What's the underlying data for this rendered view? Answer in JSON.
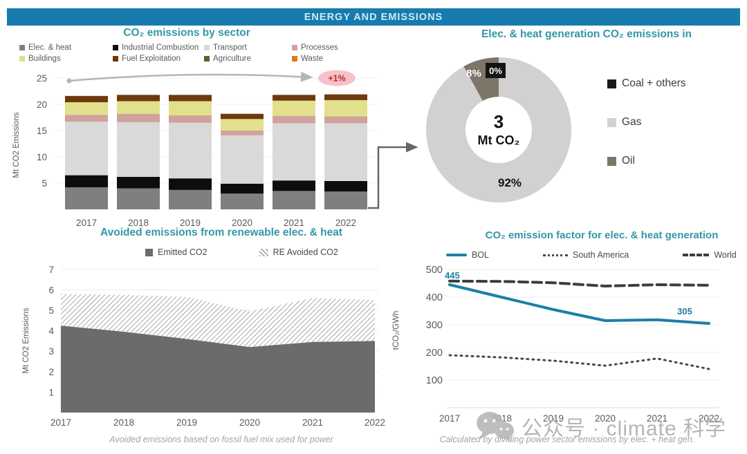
{
  "banner": {
    "title": "ENERGY AND EMISSIONS"
  },
  "watermark": {
    "icon": "wechat-icon",
    "text": "公众号 · climate 科学"
  },
  "chart_data": [
    {
      "id": "emissions-by-sector",
      "type": "bar",
      "stacked": true,
      "title": "CO₂ emissions by sector",
      "ylabel": "Mt CO2 Emissions",
      "ylim": [
        0,
        25
      ],
      "y_ticks": [
        5,
        10,
        15,
        20,
        25
      ],
      "categories": [
        "2017",
        "2018",
        "2019",
        "2020",
        "2021",
        "2022"
      ],
      "series": [
        {
          "name": "Elec. & heat",
          "color": "#7f7f7f",
          "values": [
            4.2,
            4.0,
            3.7,
            3.0,
            3.5,
            3.4
          ]
        },
        {
          "name": "Industrial Combustion",
          "color": "#0d0d0d",
          "values": [
            2.3,
            2.2,
            2.2,
            1.9,
            2.0,
            2.0
          ]
        },
        {
          "name": "Transport",
          "color": "#d9d9d9",
          "values": [
            10.2,
            10.4,
            10.6,
            9.2,
            10.9,
            11.0
          ]
        },
        {
          "name": "Processes",
          "color": "#cfa29c",
          "values": [
            1.3,
            1.6,
            1.4,
            0.9,
            1.4,
            1.3
          ]
        },
        {
          "name": "Buildings",
          "color": "#e2e08c",
          "values": [
            2.4,
            2.4,
            2.7,
            2.2,
            2.9,
            3.1
          ]
        },
        {
          "name": "Fuel Exploitation",
          "color": "#6e3a0d",
          "values": [
            1.2,
            1.2,
            1.2,
            1.0,
            1.1,
            1.1
          ]
        },
        {
          "name": "Agriculture",
          "color": "#4f6b28",
          "values": [
            0,
            0,
            0,
            0,
            0,
            0
          ]
        },
        {
          "name": "Waste",
          "color": "#e07b10",
          "values": [
            0,
            0,
            0,
            0,
            0,
            0
          ]
        }
      ],
      "annotation": {
        "label": "+1%",
        "text_color": "#b03024",
        "bg": "#f7c0ca"
      }
    },
    {
      "id": "elec-heat-generation-donut",
      "type": "pie",
      "title": "Elec. & heat generation CO₂ emissions in",
      "center_value": "3",
      "center_unit": "Mt CO₂",
      "slices": [
        {
          "label": "Coal + others",
          "pct": 0,
          "color": "#1a1a1a",
          "pct_label": "0%"
        },
        {
          "label": "Gas",
          "pct": 92,
          "color": "#d3d1cf",
          "pct_label": "92%"
        },
        {
          "label": "Oil",
          "pct": 8,
          "color": "#7c7568",
          "pct_label": "8%"
        }
      ],
      "legend_position": "right"
    },
    {
      "id": "avoided-emissions",
      "type": "area",
      "stacked": true,
      "title": "Avoided emissions from renewable elec. & heat",
      "ylabel": "Mt CO2 Emissions",
      "ylim": [
        0,
        7
      ],
      "y_ticks": [
        1,
        2,
        3,
        4,
        5,
        6,
        7
      ],
      "categories": [
        "2017",
        "2018",
        "2019",
        "2020",
        "2021",
        "2022"
      ],
      "series": [
        {
          "name": "Emitted CO2",
          "style": "solid",
          "color": "#6b6b6b",
          "values": [
            4.25,
            3.95,
            3.6,
            3.2,
            3.45,
            3.5
          ]
        },
        {
          "name": "RE Avoided CO2",
          "style": "hatched",
          "color": "#999999",
          "values": [
            1.55,
            1.8,
            2.05,
            1.75,
            2.15,
            2.0
          ]
        }
      ],
      "footnote": "Avoided emissions based on fossil fuel mix used for power"
    },
    {
      "id": "emission-factor",
      "type": "line",
      "title": "CO₂ emission factor for elec. & heat generation",
      "ylabel": "tCO₂/GWh",
      "ylim": [
        0,
        500
      ],
      "y_ticks": [
        100,
        200,
        300,
        400,
        500
      ],
      "categories": [
        "2017",
        "2018",
        "2019",
        "2020",
        "2021",
        "2022"
      ],
      "series": [
        {
          "name": "BOL",
          "style": "solid",
          "color": "#1b7fa6",
          "values": [
            445,
            400,
            355,
            315,
            318,
            305
          ]
        },
        {
          "name": "South America",
          "style": "dotted",
          "color": "#4a4a4a",
          "values": [
            190,
            182,
            170,
            152,
            178,
            140
          ]
        },
        {
          "name": "World",
          "style": "dashed",
          "color": "#3d3d3d",
          "values": [
            458,
            457,
            452,
            440,
            445,
            443
          ]
        }
      ],
      "annotations": [
        {
          "text": "445",
          "index": 0,
          "value": 445
        },
        {
          "text": "305",
          "index": 5,
          "value": 305
        }
      ],
      "footnote": "Calculated by dividing power sector emissions by elec. + heat gen."
    }
  ]
}
